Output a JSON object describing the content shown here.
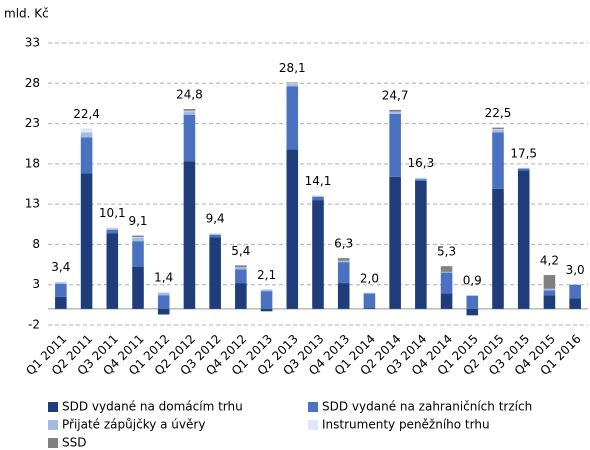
{
  "chart_data": {
    "type": "stacked_bar",
    "y_label": "mld. Kč",
    "categories": [
      "Q1 2011",
      "Q2 2011",
      "Q3 2011",
      "Q4 2011",
      "Q1 2012",
      "Q2 2012",
      "Q3 2012",
      "Q4 2012",
      "Q1 2013",
      "Q2 2013",
      "Q3 2013",
      "Q4 2013",
      "Q1 2014",
      "Q2 2014",
      "Q3 2014",
      "Q4 2014",
      "Q1 2015",
      "Q2 2015",
      "Q3 2015",
      "Q4 2015",
      "Q1 2016"
    ],
    "series": [
      {
        "name": "SDD vydané na domácím trhu",
        "color": "#1f3d7a",
        "values": [
          1.5,
          16.8,
          9.4,
          5.2,
          -0.7,
          18.3,
          8.9,
          3.2,
          -0.3,
          19.8,
          13.5,
          3.2,
          0.1,
          16.4,
          15.9,
          1.9,
          -0.8,
          14.9,
          17.2,
          1.7,
          1.3
        ]
      },
      {
        "name": "SDD vydané na zahraničních trzích",
        "color": "#4a72c0",
        "values": [
          1.6,
          4.5,
          0.4,
          3.2,
          1.7,
          5.8,
          0.3,
          1.7,
          2.2,
          7.8,
          0.4,
          2.6,
          1.8,
          7.8,
          0.2,
          2.6,
          1.6,
          7.0,
          0.2,
          0.6,
          1.7
        ]
      },
      {
        "name": "Přijaté zápůjčky a úvěry",
        "color": "#a3bbe3",
        "values": [
          0.2,
          0.6,
          0.2,
          0.4,
          0.3,
          0.4,
          0.1,
          0.3,
          0.2,
          0.3,
          0.1,
          0.2,
          0.1,
          0.3,
          0.1,
          0.1,
          0.1,
          0.3,
          0.1,
          0.2,
          0
        ]
      },
      {
        "name": "Instrumenty peněžního trhu",
        "color": "#dde7f5",
        "values": [
          0.1,
          0.5,
          0.1,
          0.1,
          0.1,
          0.1,
          0.1,
          0,
          0,
          0.1,
          0.1,
          0,
          0,
          0,
          0.1,
          0,
          0,
          0.1,
          0,
          0,
          0
        ]
      },
      {
        "name": "SSD",
        "color": "#808080",
        "values": [
          0,
          0,
          0,
          0.2,
          0,
          0.2,
          0,
          0.2,
          0,
          0.1,
          0,
          0.3,
          0,
          0.2,
          0,
          0.7,
          0,
          0.2,
          0,
          1.7,
          0
        ]
      }
    ],
    "totals": [
      3.4,
      22.4,
      10.1,
      9.1,
      1.4,
      24.8,
      9.4,
      5.4,
      2.1,
      28.1,
      14.1,
      6.3,
      2.0,
      24.7,
      16.3,
      5.3,
      0.9,
      22.5,
      17.5,
      4.2,
      3.0
    ],
    "total_labels": [
      "3,4",
      "22,4",
      "10,1",
      "9,1",
      "1,4",
      "24,8",
      "9,4",
      "5,4",
      "2,1",
      "28,1",
      "14,1",
      "6,3",
      "2,0",
      "24,7",
      "16,3",
      "5,3",
      "0,9",
      "22,5",
      "17,5",
      "4,2",
      "3,0"
    ],
    "ylim": [
      -2,
      33
    ],
    "yticks": [
      -2,
      3,
      8,
      13,
      18,
      23,
      28,
      33
    ],
    "grid": true
  }
}
